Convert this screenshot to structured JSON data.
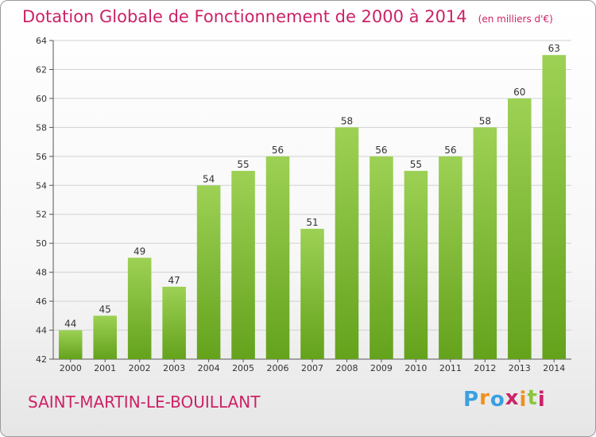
{
  "header": {
    "title": "Dotation Globale de Fonctionnement de 2000 à 2014",
    "unit": "(en milliers d'€)"
  },
  "footer": {
    "commune": "SAINT-MARTIN-LE-BOUILLANT",
    "logo": "Proxiti"
  },
  "colors": {
    "title": "#cc2266",
    "bar_top": "#9dd155",
    "bar_bottom": "#64a21c",
    "logo_letters": [
      "#3aa0e0",
      "#f09020",
      "#3aa0e0",
      "#cc2266",
      "#f09020",
      "#8cc63e",
      "#cc2266"
    ]
  },
  "chart_data": {
    "type": "bar",
    "title": "Dotation Globale de Fonctionnement de 2000 à 2014",
    "subtitle": "(en milliers d'€)",
    "xlabel": "",
    "ylabel": "",
    "categories": [
      "2000",
      "2001",
      "2002",
      "2003",
      "2004",
      "2005",
      "2006",
      "2007",
      "2008",
      "2009",
      "2010",
      "2011",
      "2012",
      "2013",
      "2014"
    ],
    "values": [
      44,
      45,
      49,
      47,
      54,
      55,
      56,
      51,
      58,
      56,
      55,
      56,
      58,
      60,
      63
    ],
    "ylim": [
      42,
      64
    ],
    "yticks": [
      42,
      44,
      46,
      48,
      50,
      52,
      54,
      56,
      58,
      60,
      62,
      64
    ],
    "grid": true,
    "data_labels": true
  }
}
